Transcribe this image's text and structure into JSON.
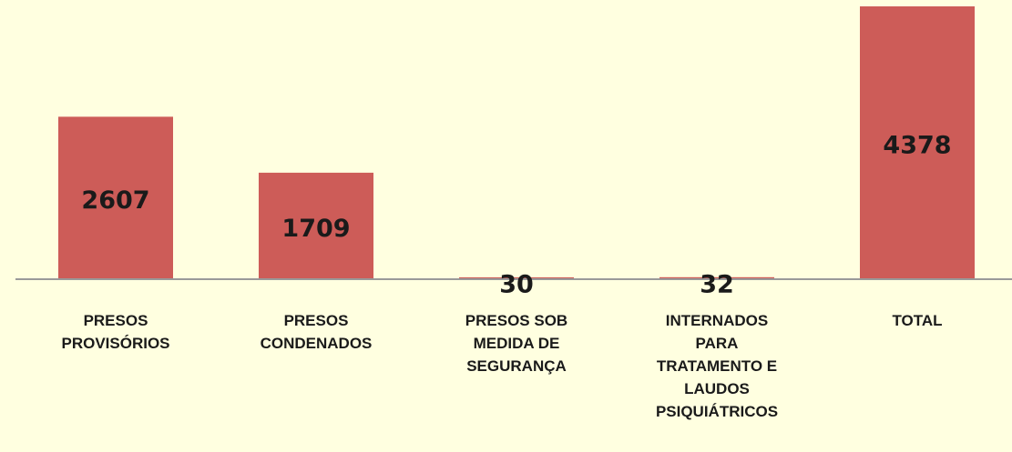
{
  "chart_data": {
    "type": "bar",
    "categories": [
      "PRESOS PROVISÓRIOS",
      "PRESOS CONDENADOS",
      "PRESOS SOB MEDIDA DE SEGURANÇA",
      "INTERNADOS PARA TRATAMENTO E LAUDOS PSIQUIÁTRICOS",
      "TOTAL"
    ],
    "values": [
      2607,
      1709,
      30,
      32,
      4378
    ],
    "color": "#cd5c58"
  }
}
